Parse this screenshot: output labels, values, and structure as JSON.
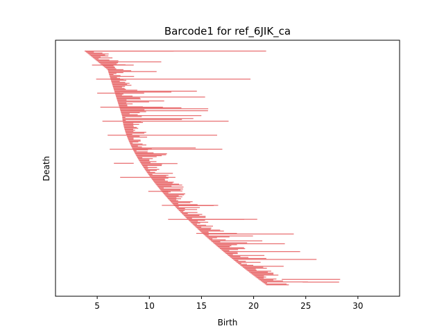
{
  "chart_data": {
    "type": "barcode",
    "title": "Barcode1 for ref_6JIK_ca",
    "xlabel": "Birth",
    "ylabel": "Death",
    "xlim": [
      1,
      34
    ],
    "xticks": [
      5,
      10,
      15,
      20,
      25,
      30
    ],
    "yticks_visible": false,
    "grid": false,
    "bar_color": "#e8696b",
    "bar_count": 240,
    "bars_sample": [
      {
        "birth": 3.8,
        "death": 21.2
      },
      {
        "birth": 4.5,
        "death": 8.5
      },
      {
        "birth": 4.9,
        "death": 19.7
      },
      {
        "birth": 5.0,
        "death": 9.5
      },
      {
        "birth": 5.3,
        "death": 11.3
      },
      {
        "birth": 5.5,
        "death": 17.6
      },
      {
        "birth": 6.0,
        "death": 16.5
      },
      {
        "birth": 6.2,
        "death": 17.0
      },
      {
        "birth": 6.6,
        "death": 8.5
      },
      {
        "birth": 7.2,
        "death": 12.5
      },
      {
        "birth": 9.9,
        "death": 11.8
      },
      {
        "birth": 11.2,
        "death": 16.6
      },
      {
        "birth": 11.8,
        "death": 19.1
      },
      {
        "birth": 14.5,
        "death": 18.4
      },
      {
        "birth": 22.7,
        "death": 28.3
      },
      {
        "birth": 24.7,
        "death": 28.2
      }
    ]
  }
}
